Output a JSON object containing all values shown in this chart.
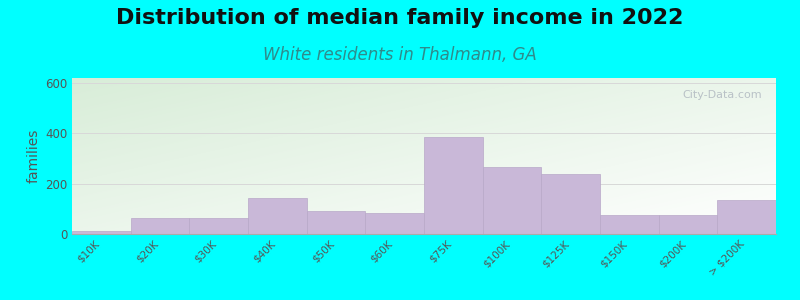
{
  "title": "Distribution of median family income in 2022",
  "subtitle": "White residents in Thalmann, GA",
  "ylabel": "families",
  "categories": [
    "$10K",
    "$20K",
    "$30K",
    "$40K",
    "$50K",
    "$60K",
    "$75K",
    "$100K",
    "$125K",
    "$150K",
    "$200K",
    "> $200K"
  ],
  "values": [
    10,
    65,
    65,
    145,
    90,
    85,
    385,
    265,
    240,
    75,
    75,
    135
  ],
  "bar_color": "#c9b8d8",
  "bar_edgecolor": "#b8a8c8",
  "ylim": [
    0,
    620
  ],
  "yticks": [
    0,
    200,
    400,
    600
  ],
  "background_outer": "#00ffff",
  "bg_color_top_left": "#d8edd8",
  "bg_color_bottom_right": "#ffffff",
  "title_fontsize": 16,
  "subtitle_fontsize": 12,
  "subtitle_color": "#2e8b8b",
  "ylabel_fontsize": 10,
  "watermark_text": "City-Data.com",
  "watermark_color": "#b0b8c0",
  "grid_color": "#d8d8d8",
  "tick_label_color": "#555555",
  "title_color": "#111111"
}
